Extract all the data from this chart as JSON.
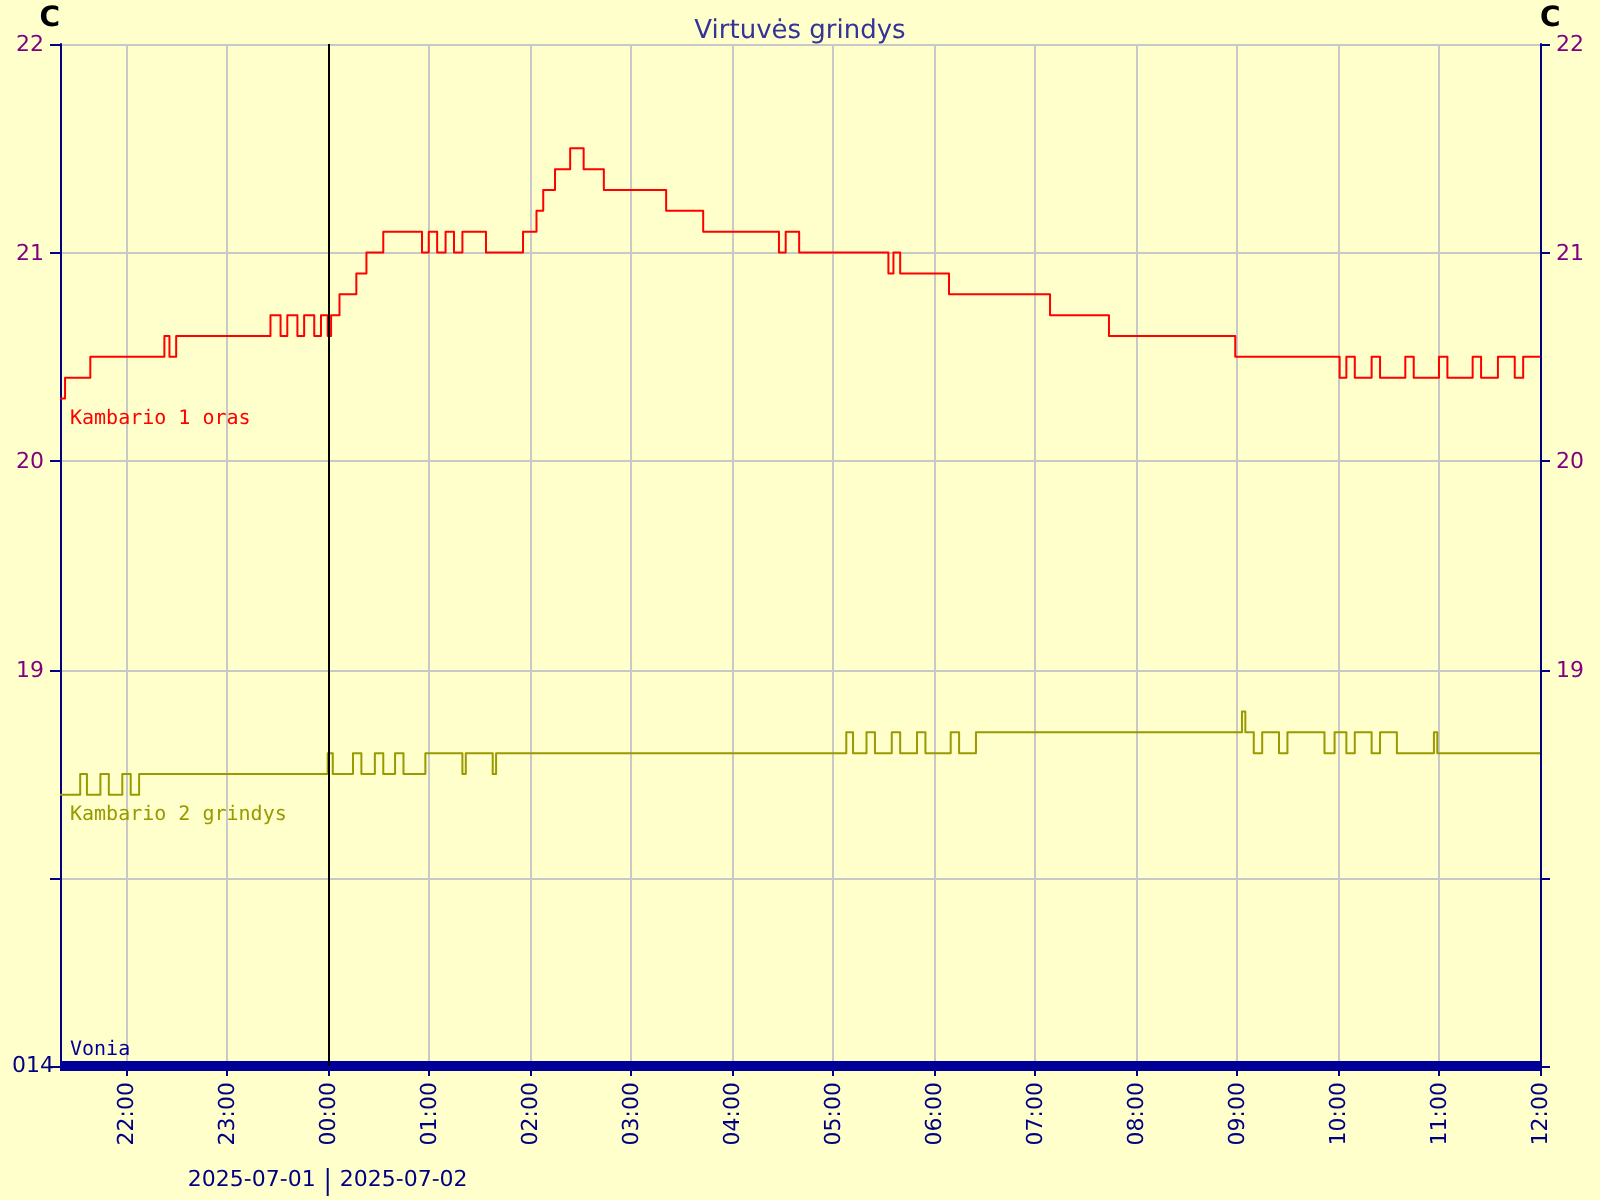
{
  "chart_data": {
    "type": "step",
    "title": "Virtuvės grindys",
    "ylabel": "C",
    "y2label": "C",
    "xlim": [
      "2025-07-01T21:21",
      "2025-07-02T12:00"
    ],
    "xticks": [
      {
        "value": "2025-07-01T22:00",
        "label": "22:00"
      },
      {
        "value": "2025-07-01T23:00",
        "label": "23:00"
      },
      {
        "value": "2025-07-02T00:00",
        "label": "00:00"
      },
      {
        "value": "2025-07-02T01:00",
        "label": "01:00"
      },
      {
        "value": "2025-07-02T02:00",
        "label": "02:00"
      },
      {
        "value": "2025-07-02T03:00",
        "label": "03:00"
      },
      {
        "value": "2025-07-02T04:00",
        "label": "04:00"
      },
      {
        "value": "2025-07-02T05:00",
        "label": "05:00"
      },
      {
        "value": "2025-07-02T06:00",
        "label": "06:00"
      },
      {
        "value": "2025-07-02T07:00",
        "label": "07:00"
      },
      {
        "value": "2025-07-02T08:00",
        "label": "08:00"
      },
      {
        "value": "2025-07-02T09:00",
        "label": "09:00"
      },
      {
        "value": "2025-07-02T10:00",
        "label": "10:00"
      },
      {
        "value": "2025-07-02T11:00",
        "label": "11:00"
      },
      {
        "value": "2025-07-02T12:00",
        "label": "12:00"
      }
    ],
    "ylim": [
      17.1,
      22
    ],
    "yticks": [
      {
        "value": 17.1,
        "label": null
      },
      {
        "value": 18,
        "label": null
      },
      19,
      20,
      21,
      22
    ],
    "y2lim": [
      17.1,
      22
    ],
    "y2ticks": [
      {
        "value": 17.1,
        "label": null
      },
      {
        "value": 18,
        "label": null
      },
      19,
      20,
      21,
      22
    ],
    "grid": true,
    "marker": "none",
    "line_style": "solid",
    "ref_lines": [
      {
        "axis": "x",
        "value": "2025-07-02T00:00",
        "label": null,
        "color": "#000000"
      }
    ],
    "annotations": [
      "014",
      "2025-07-01",
      "2025-07-02"
    ],
    "series": [
      {
        "name": "Kambario 1 oras",
        "color": "#ff0000",
        "x": [
          "2025-07-01T21:21",
          "2025-07-01T21:24",
          "2025-07-01T21:39",
          "2025-07-01T22:23",
          "2025-07-01T22:26",
          "2025-07-01T22:30",
          "2025-07-01T23:26",
          "2025-07-01T23:32",
          "2025-07-01T23:36",
          "2025-07-01T23:42",
          "2025-07-01T23:46",
          "2025-07-01T23:52",
          "2025-07-01T23:56",
          "2025-07-02T00:00",
          "2025-07-02T00:02",
          "2025-07-02T00:07",
          "2025-07-02T00:17",
          "2025-07-02T00:23",
          "2025-07-02T00:33",
          "2025-07-02T00:56",
          "2025-07-02T01:00",
          "2025-07-02T01:05",
          "2025-07-02T01:10",
          "2025-07-02T01:15",
          "2025-07-02T01:20",
          "2025-07-02T01:34",
          "2025-07-02T01:56",
          "2025-07-02T02:04",
          "2025-07-02T02:08",
          "2025-07-02T02:15",
          "2025-07-02T02:24",
          "2025-07-02T02:32",
          "2025-07-02T02:44",
          "2025-07-02T03:21",
          "2025-07-02T03:43",
          "2025-07-02T04:28",
          "2025-07-02T04:32",
          "2025-07-02T04:40",
          "2025-07-02T05:33",
          "2025-07-02T05:36",
          "2025-07-02T05:40",
          "2025-07-02T06:09",
          "2025-07-02T07:09",
          "2025-07-02T07:44",
          "2025-07-02T08:59",
          "2025-07-02T10:01",
          "2025-07-02T10:05",
          "2025-07-02T10:10",
          "2025-07-02T10:20",
          "2025-07-02T10:25",
          "2025-07-02T10:40",
          "2025-07-02T10:45",
          "2025-07-02T11:00",
          "2025-07-02T11:05",
          "2025-07-02T11:20",
          "2025-07-02T11:25",
          "2025-07-02T11:35",
          "2025-07-02T11:45",
          "2025-07-02T11:50",
          "2025-07-02T12:00"
        ],
        "values": [
          20.3,
          20.4,
          20.5,
          20.6,
          20.5,
          20.6,
          20.7,
          20.6,
          20.7,
          20.6,
          20.7,
          20.6,
          20.7,
          20.6,
          20.7,
          20.8,
          20.9,
          21.0,
          21.1,
          21.0,
          21.1,
          21.0,
          21.1,
          21.0,
          21.1,
          21.0,
          21.1,
          21.2,
          21.3,
          21.4,
          21.5,
          21.4,
          21.3,
          21.2,
          21.1,
          21.0,
          21.1,
          21.0,
          20.9,
          21.0,
          20.9,
          20.8,
          20.7,
          20.6,
          20.5,
          20.4,
          20.5,
          20.4,
          20.5,
          20.4,
          20.5,
          20.4,
          20.5,
          20.4,
          20.5,
          20.4,
          20.5,
          20.4,
          20.5,
          20.5
        ]
      },
      {
        "name": "Kambario 2 grindys",
        "color": "#999900",
        "x": [
          "2025-07-01T21:21",
          "2025-07-01T21:33",
          "2025-07-01T21:37",
          "2025-07-01T21:45",
          "2025-07-01T21:50",
          "2025-07-01T21:58",
          "2025-07-01T22:03",
          "2025-07-01T22:08",
          "2025-07-02T00:00",
          "2025-07-02T00:03",
          "2025-07-02T00:15",
          "2025-07-02T00:20",
          "2025-07-02T00:28",
          "2025-07-02T00:33",
          "2025-07-02T00:40",
          "2025-07-02T00:45",
          "2025-07-02T00:58",
          "2025-07-02T01:20",
          "2025-07-02T01:22",
          "2025-07-02T01:38",
          "2025-07-02T01:40",
          "2025-07-02T05:08",
          "2025-07-02T05:12",
          "2025-07-02T05:20",
          "2025-07-02T05:25",
          "2025-07-02T05:35",
          "2025-07-02T05:40",
          "2025-07-02T05:50",
          "2025-07-02T05:55",
          "2025-07-02T06:10",
          "2025-07-02T06:15",
          "2025-07-02T06:25",
          "2025-07-02T09:03",
          "2025-07-02T09:05",
          "2025-07-02T09:10",
          "2025-07-02T09:15",
          "2025-07-02T09:25",
          "2025-07-02T09:30",
          "2025-07-02T09:52",
          "2025-07-02T09:58",
          "2025-07-02T10:05",
          "2025-07-02T10:10",
          "2025-07-02T10:20",
          "2025-07-02T10:25",
          "2025-07-02T10:35",
          "2025-07-02T10:57",
          "2025-07-02T10:59",
          "2025-07-02T12:00"
        ],
        "values": [
          18.4,
          18.5,
          18.4,
          18.5,
          18.4,
          18.5,
          18.4,
          18.5,
          18.6,
          18.5,
          18.6,
          18.5,
          18.6,
          18.5,
          18.6,
          18.5,
          18.6,
          18.5,
          18.6,
          18.5,
          18.6,
          18.7,
          18.6,
          18.7,
          18.6,
          18.7,
          18.6,
          18.7,
          18.6,
          18.7,
          18.6,
          18.7,
          18.8,
          18.7,
          18.6,
          18.7,
          18.6,
          18.7,
          18.6,
          18.7,
          18.6,
          18.7,
          18.6,
          18.7,
          18.6,
          18.7,
          18.6,
          18.6
        ]
      },
      {
        "name": "Vonia",
        "color": "#000099",
        "x": [
          "2025-07-01T21:21",
          "2025-07-02T12:00"
        ],
        "values": [
          17.1,
          17.1
        ]
      }
    ]
  }
}
